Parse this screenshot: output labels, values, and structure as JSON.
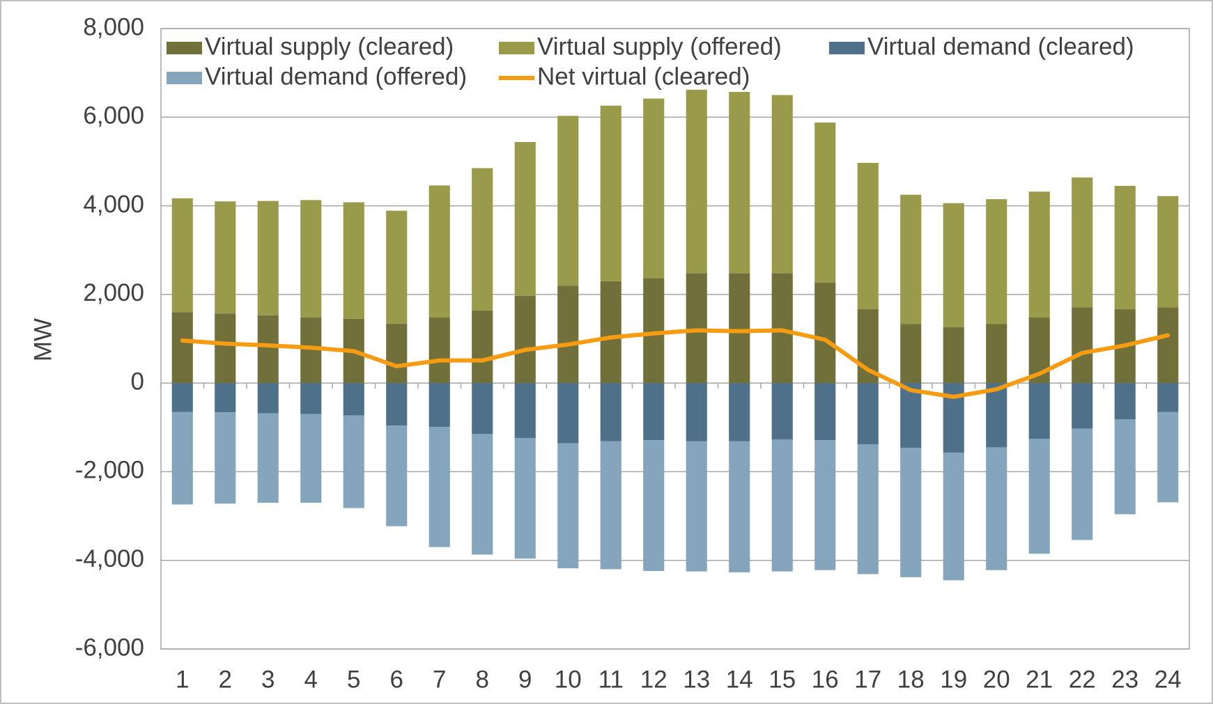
{
  "chart_data": {
    "type": "bar",
    "stacked": true,
    "y_label": "MW",
    "categories": [
      "1",
      "2",
      "3",
      "4",
      "5",
      "6",
      "7",
      "8",
      "9",
      "10",
      "11",
      "12",
      "13",
      "14",
      "15",
      "16",
      "17",
      "18",
      "19",
      "20",
      "21",
      "22",
      "23",
      "24"
    ],
    "series": [
      {
        "name": "Virtual supply (cleared)",
        "color": "#71703a",
        "values": [
          1600,
          1570,
          1530,
          1480,
          1450,
          1340,
          1480,
          1640,
          1970,
          2200,
          2300,
          2370,
          2480,
          2480,
          2480,
          2270,
          1670,
          1330,
          1260,
          1330,
          1480,
          1710,
          1670,
          1710
        ]
      },
      {
        "name": "Virtual supply (offered)",
        "color": "#9a9b4a",
        "values": [
          2570,
          2530,
          2580,
          2650,
          2630,
          2550,
          2980,
          3210,
          3470,
          3830,
          3960,
          4050,
          4140,
          4090,
          4020,
          3610,
          3300,
          2920,
          2800,
          2820,
          2840,
          2930,
          2780,
          2510
        ]
      },
      {
        "name": "Virtual demand (cleared)",
        "color": "#4e7189",
        "values": [
          -650,
          -660,
          -680,
          -700,
          -730,
          -960,
          -990,
          -1150,
          -1240,
          -1360,
          -1310,
          -1290,
          -1310,
          -1310,
          -1270,
          -1290,
          -1380,
          -1460,
          -1570,
          -1450,
          -1260,
          -1030,
          -820,
          -650
        ]
      },
      {
        "name": "Virtual demand (offered)",
        "color": "#84a5bb",
        "values": [
          -2090,
          -2060,
          -2020,
          -2000,
          -2090,
          -2270,
          -2710,
          -2720,
          -2720,
          -2820,
          -2890,
          -2950,
          -2940,
          -2960,
          -2980,
          -2930,
          -2930,
          -2920,
          -2880,
          -2770,
          -2590,
          -2510,
          -2140,
          -2040
        ]
      },
      {
        "name": "Net virtual (cleared)",
        "color": "#f59c12",
        "type": "line",
        "values": [
          960,
          890,
          850,
          800,
          720,
          380,
          510,
          510,
          750,
          870,
          1030,
          1120,
          1190,
          1170,
          1190,
          980,
          300,
          -160,
          -310,
          -140,
          210,
          680,
          850,
          1080
        ]
      }
    ],
    "ylim": [
      -6000,
      8000
    ],
    "yticks": [
      {
        "value": -6000,
        "label": "-6,000"
      },
      {
        "value": -4000,
        "label": "-4,000"
      },
      {
        "value": -2000,
        "label": "-2,000"
      },
      0,
      {
        "value": 2000,
        "label": "2,000"
      },
      {
        "value": 4000,
        "label": "4,000"
      },
      {
        "value": 6000,
        "label": "6,000"
      },
      {
        "value": 8000,
        "label": "8,000"
      }
    ],
    "grid": true,
    "legend": "top-left"
  }
}
